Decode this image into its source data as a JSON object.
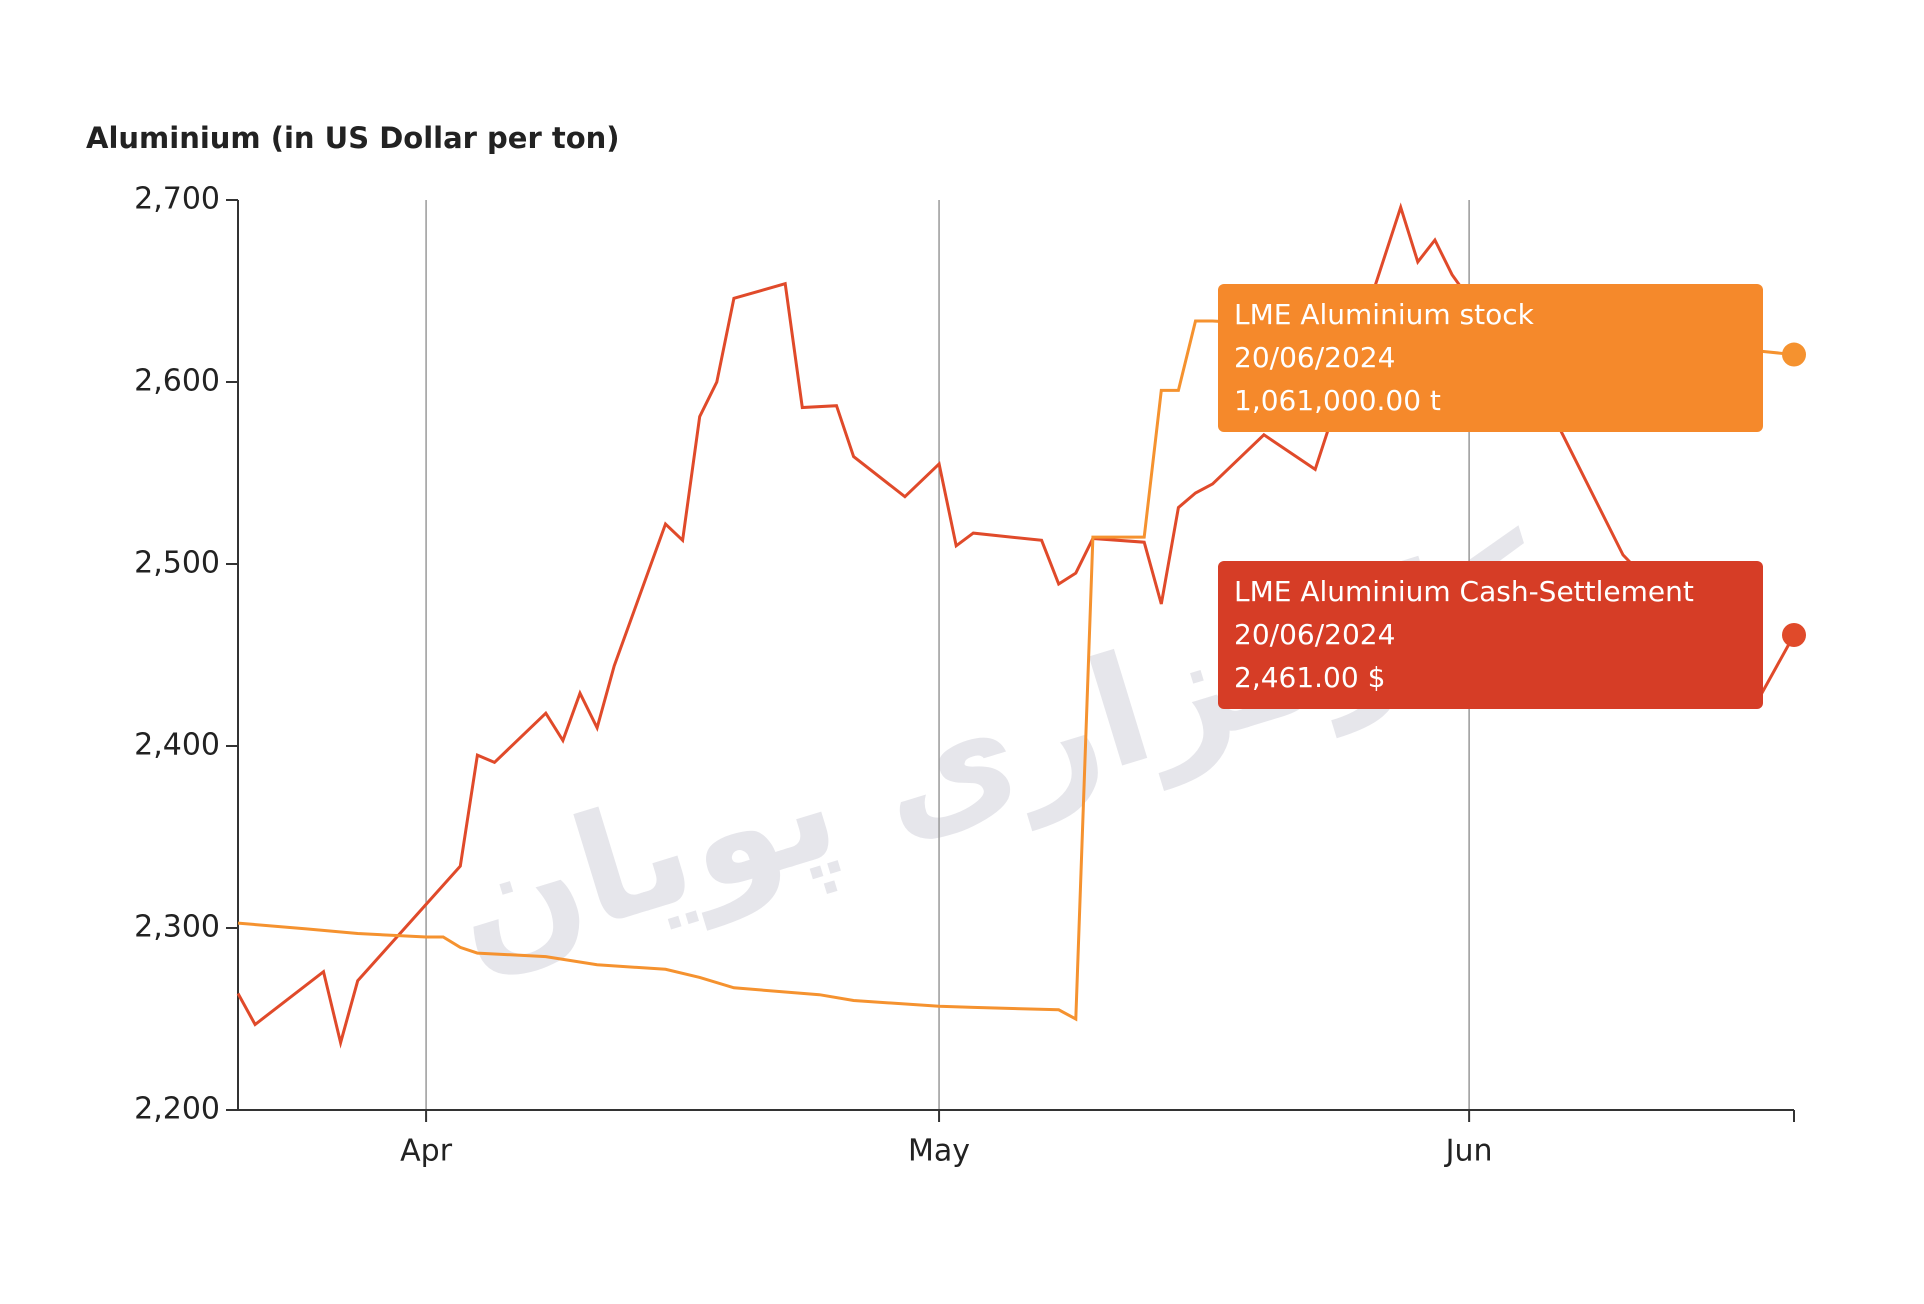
{
  "chart_data": {
    "type": "line",
    "title": "Aluminium (in US Dollar per ton)",
    "watermark": "کارگزاری پویان",
    "xlim": [
      "2024-03-21",
      "2024-06-20"
    ],
    "xticks": [
      {
        "value": "2024-04-01",
        "label": "Apr"
      },
      {
        "value": "2024-05-01",
        "label": "May"
      },
      {
        "value": "2024-06-01",
        "label": "Jun"
      }
    ],
    "ylim": [
      2200,
      2700
    ],
    "yticks": [
      {
        "value": 2200,
        "label": "2,200"
      },
      {
        "value": 2300,
        "label": "2,300"
      },
      {
        "value": 2400,
        "label": "2,400"
      },
      {
        "value": 2500,
        "label": "2,500"
      },
      {
        "value": 2600,
        "label": "2,600"
      },
      {
        "value": 2700,
        "label": "2,700"
      }
    ],
    "y2lim": [
      407250,
      1194750
    ],
    "grid": true,
    "series": [
      {
        "name": "LME Aluminium Cash-Settlement",
        "color": "#e04a2a",
        "x": [
          "2024-03-21",
          "2024-03-22",
          "2024-03-26",
          "2024-03-27",
          "2024-03-28",
          "2024-04-03",
          "2024-04-04",
          "2024-04-05",
          "2024-04-08",
          "2024-04-09",
          "2024-04-10",
          "2024-04-11",
          "2024-04-12",
          "2024-04-15",
          "2024-04-16",
          "2024-04-17",
          "2024-04-18",
          "2024-04-19",
          "2024-04-22",
          "2024-04-23",
          "2024-04-25",
          "2024-04-26",
          "2024-04-29",
          "2024-05-01",
          "2024-05-02",
          "2024-05-03",
          "2024-05-07",
          "2024-05-08",
          "2024-05-09",
          "2024-05-10",
          "2024-05-13",
          "2024-05-14",
          "2024-05-15",
          "2024-05-16",
          "2024-05-17",
          "2024-05-20",
          "2024-05-23",
          "2024-05-28",
          "2024-05-29",
          "2024-05-30",
          "2024-05-31",
          "2024-06-06",
          "2024-06-10",
          "2024-06-18",
          "2024-06-20"
        ],
        "values": [
          2264,
          2247,
          2276,
          2237,
          2271,
          2334,
          2395,
          2391,
          2418,
          2403,
          2429,
          2410,
          2444,
          2522,
          2513,
          2581,
          2600,
          2646,
          2654,
          2586,
          2587,
          2559,
          2537,
          2555,
          2510,
          2517,
          2513,
          2489,
          2495,
          2514,
          2512,
          2478,
          2531,
          2539,
          2544,
          2571,
          2552,
          2696,
          2666,
          2678,
          2659,
          2580,
          2505,
          2427,
          2461
        ]
      },
      {
        "name": "LME Aluminium stock",
        "color": "#f5922f",
        "axis": "y2",
        "x": [
          "2024-03-21",
          "2024-03-25",
          "2024-03-28",
          "2024-04-01",
          "2024-04-02",
          "2024-04-03",
          "2024-04-04",
          "2024-04-08",
          "2024-04-11",
          "2024-04-15",
          "2024-04-17",
          "2024-04-19",
          "2024-04-24",
          "2024-04-26",
          "2024-05-01",
          "2024-05-03",
          "2024-05-08",
          "2024-05-09",
          "2024-05-10",
          "2024-05-13",
          "2024-05-14",
          "2024-05-15",
          "2024-05-16",
          "2024-05-17",
          "2024-06-18",
          "2024-06-20"
        ],
        "values": [
          569000,
          564000,
          560000,
          557000,
          557000,
          548000,
          543000,
          540000,
          533000,
          529000,
          522000,
          513000,
          507000,
          502000,
          497000,
          496000,
          494000,
          486000,
          903000,
          903000,
          1030000,
          1030000,
          1090000,
          1090000,
          1064000,
          1061000
        ]
      }
    ],
    "tooltips": [
      {
        "date": "20/06/2024",
        "value": "1,061,000.00 t"
      },
      {
        "date": "20/06/2024",
        "value": "2,461.00 $"
      }
    ]
  }
}
